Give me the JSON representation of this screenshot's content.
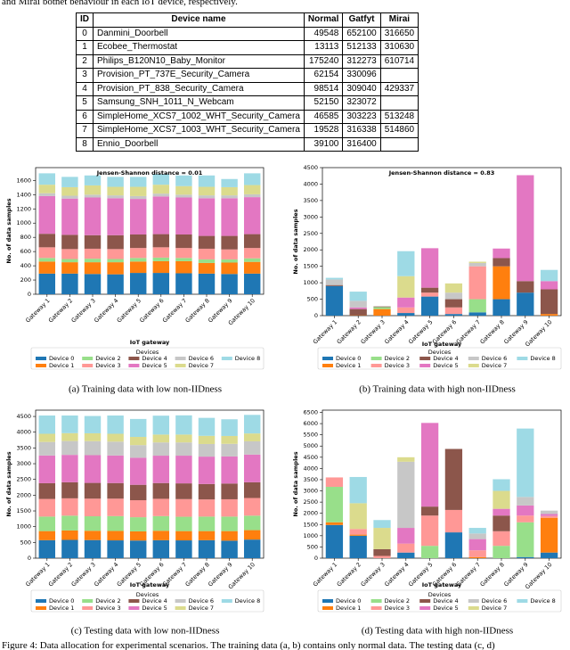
{
  "top_text": "and Mirai botnet behaviour in each IoT device, respectively.",
  "table": {
    "header": [
      "ID",
      "Device name",
      "Normal",
      "Gatfyt",
      "Mirai"
    ],
    "rows": [
      [
        0,
        "Danmini_Doorbell",
        49548,
        652100,
        316650
      ],
      [
        1,
        "Ecobee_Thermostat",
        13113,
        512133,
        310630
      ],
      [
        2,
        "Philips_B120N10_Baby_Monitor",
        175240,
        312273,
        610714
      ],
      [
        3,
        "Provision_PT_737E_Security_Camera",
        62154,
        330096,
        null
      ],
      [
        4,
        "Provision_PT_838_Security_Camera",
        98514,
        309040,
        429337
      ],
      [
        5,
        "Samsung_SNH_1011_N_Webcam",
        52150,
        323072,
        null
      ],
      [
        6,
        "SimpleHome_XCS7_1002_WHT_Security_Camera",
        46585,
        303223,
        513248
      ],
      [
        7,
        "SimpleHome_XCS7_1003_WHT_Security_Camera",
        19528,
        316338,
        514860
      ],
      [
        8,
        "Ennio_Doorbell",
        39100,
        316400,
        null
      ]
    ]
  },
  "chart_data": [
    {
      "type": "bar",
      "stacked": true,
      "annotation": "Jensen-Shannon distance = 0.01",
      "xlabel": "IoT gateway",
      "ylabel": "No. of data samples",
      "legend_title": "Devices",
      "caption": "(a) Training data with low non-IIDness",
      "categories": [
        "Gateway 1",
        "Gateway 2",
        "Gateway 3",
        "Gateway 4",
        "Gateway 5",
        "Gateway 6",
        "Gateway 7",
        "Gateway 8",
        "Gateway 9",
        "Gateway 10"
      ],
      "ylim": [
        0,
        1780
      ],
      "yticks": [
        0,
        200,
        400,
        600,
        800,
        1000,
        1200,
        1400,
        1600
      ],
      "series": [
        {
          "name": "Device 0",
          "color": "#1f77b4",
          "values": [
            290,
            290,
            285,
            280,
            300,
            300,
            295,
            290,
            285,
            290
          ]
        },
        {
          "name": "Device 1",
          "color": "#ff7f0e",
          "values": [
            170,
            160,
            165,
            170,
            160,
            165,
            170,
            150,
            160,
            165
          ]
        },
        {
          "name": "Device 2",
          "color": "#98df8a",
          "values": [
            50,
            45,
            50,
            45,
            50,
            50,
            45,
            50,
            45,
            50
          ]
        },
        {
          "name": "Device 3",
          "color": "#ff9896",
          "values": [
            150,
            140,
            140,
            140,
            140,
            145,
            140,
            150,
            140,
            145
          ]
        },
        {
          "name": "Device 4",
          "color": "#8c564b",
          "values": [
            190,
            200,
            190,
            195,
            190,
            185,
            190,
            180,
            190,
            195
          ]
        },
        {
          "name": "Device 5",
          "color": "#e377c2",
          "values": [
            530,
            510,
            530,
            520,
            500,
            530,
            520,
            530,
            530,
            520
          ]
        },
        {
          "name": "Device 6",
          "color": "#c7c7c7",
          "values": [
            40,
            40,
            40,
            40,
            40,
            40,
            40,
            40,
            40,
            40
          ]
        },
        {
          "name": "Device 7",
          "color": "#dbdb8d",
          "values": [
            120,
            120,
            130,
            120,
            130,
            125,
            120,
            120,
            115,
            130
          ]
        },
        {
          "name": "Device 8",
          "color": "#9edae5",
          "values": [
            160,
            145,
            140,
            140,
            140,
            150,
            150,
            160,
            115,
            165
          ]
        }
      ]
    },
    {
      "type": "bar",
      "stacked": true,
      "annotation": "Jensen-Shannon distance = 0.83",
      "xlabel": "IoT gateway",
      "ylabel": "No. of data samples",
      "legend_title": "Devices",
      "caption": "(b) Training data with high non-IIDness",
      "categories": [
        "Gateway 1",
        "Gateway 2",
        "Gateway 3",
        "Gateway 4",
        "Gateway 5",
        "Gateway 6",
        "Gateway 7",
        "Gateway 8",
        "Gateway 9",
        "Gateway 10"
      ],
      "ylim": [
        0,
        4500
      ],
      "yticks": [
        0,
        500,
        1000,
        1500,
        2000,
        2500,
        3000,
        3500,
        4000,
        4500
      ],
      "series": [
        {
          "name": "Device 0",
          "color": "#1f77b4",
          "values": [
            900,
            0,
            0,
            80,
            580,
            50,
            100,
            500,
            700,
            0
          ]
        },
        {
          "name": "Device 1",
          "color": "#ff7f0e",
          "values": [
            0,
            10,
            200,
            0,
            0,
            0,
            0,
            1000,
            0,
            50
          ]
        },
        {
          "name": "Device 2",
          "color": "#98df8a",
          "values": [
            0,
            0,
            60,
            0,
            0,
            0,
            400,
            0,
            0,
            0
          ]
        },
        {
          "name": "Device 3",
          "color": "#ff9896",
          "values": [
            0,
            0,
            0,
            170,
            120,
            200,
            1000,
            0,
            0,
            0
          ]
        },
        {
          "name": "Device 4",
          "color": "#8c564b",
          "values": [
            30,
            190,
            20,
            0,
            150,
            250,
            0,
            250,
            350,
            750
          ]
        },
        {
          "name": "Device 5",
          "color": "#e377c2",
          "values": [
            0,
            50,
            0,
            300,
            1200,
            0,
            0,
            290,
            3220,
            250
          ]
        },
        {
          "name": "Device 6",
          "color": "#c7c7c7",
          "values": [
            170,
            200,
            0,
            0,
            0,
            200,
            100,
            0,
            0,
            0
          ]
        },
        {
          "name": "Device 7",
          "color": "#dbdb8d",
          "values": [
            0,
            0,
            0,
            650,
            0,
            280,
            40,
            0,
            0,
            0
          ]
        },
        {
          "name": "Device 8",
          "color": "#9edae5",
          "values": [
            50,
            280,
            0,
            760,
            0,
            0,
            0,
            0,
            0,
            340
          ]
        }
      ]
    },
    {
      "type": "bar",
      "stacked": true,
      "xlabel": "IoT gateway",
      "ylabel": "No. of data samples",
      "legend_title": "Devices",
      "caption": "(c) Testing data with low non-IIDness",
      "categories": [
        "Gateway 1",
        "Gateway 2",
        "Gateway 3",
        "Gateway 4",
        "Gateway 5",
        "Gateway 6",
        "Gateway 7",
        "Gateway 8",
        "Gateway 9",
        "Gateway 10"
      ],
      "ylim": [
        0,
        4700
      ],
      "yticks": [
        0,
        500,
        1000,
        1500,
        2000,
        2500,
        3000,
        3500,
        4000,
        4500
      ],
      "series": [
        {
          "name": "Device 0",
          "color": "#1f77b4",
          "values": [
            570,
            580,
            575,
            565,
            560,
            570,
            565,
            570,
            555,
            590
          ]
        },
        {
          "name": "Device 1",
          "color": "#ff7f0e",
          "values": [
            290,
            300,
            295,
            300,
            290,
            300,
            295,
            290,
            305,
            300
          ]
        },
        {
          "name": "Device 2",
          "color": "#98df8a",
          "values": [
            460,
            470,
            460,
            470,
            450,
            465,
            455,
            460,
            460,
            460
          ]
        },
        {
          "name": "Device 3",
          "color": "#ff9896",
          "values": [
            560,
            550,
            560,
            555,
            540,
            550,
            560,
            545,
            550,
            560
          ]
        },
        {
          "name": "Device 4",
          "color": "#8c564b",
          "values": [
            500,
            510,
            500,
            495,
            490,
            500,
            500,
            490,
            500,
            500
          ]
        },
        {
          "name": "Device 5",
          "color": "#e377c2",
          "values": [
            880,
            870,
            880,
            875,
            860,
            870,
            880,
            870,
            860,
            880
          ]
        },
        {
          "name": "Device 6",
          "color": "#c7c7c7",
          "values": [
            430,
            440,
            445,
            440,
            400,
            420,
            420,
            400,
            400,
            420
          ]
        },
        {
          "name": "Device 7",
          "color": "#dbdb8d",
          "values": [
            260,
            250,
            250,
            250,
            260,
            250,
            250,
            260,
            250,
            250
          ]
        },
        {
          "name": "Device 8",
          "color": "#9edae5",
          "values": [
            580,
            560,
            550,
            580,
            570,
            600,
            610,
            570,
            530,
            590
          ]
        }
      ]
    },
    {
      "type": "bar",
      "stacked": true,
      "xlabel": "IoT gateway",
      "ylabel": "No. of data samples",
      "legend_title": "Devices",
      "caption": "(d) Testing data with high non-IIDness",
      "categories": [
        "Gateway 1",
        "Gateway 2",
        "Gateway 3",
        "Gateway 4",
        "Gateway 5",
        "Gateway 6",
        "Gateway 7",
        "Gateway 8",
        "Gateway 9",
        "Gateway 10"
      ],
      "ylim": [
        0,
        6600
      ],
      "yticks": [
        0,
        500,
        1000,
        1500,
        2000,
        2500,
        3000,
        3500,
        4000,
        4500,
        5000,
        5500,
        6000,
        6500
      ],
      "series": [
        {
          "name": "Device 0",
          "color": "#1f77b4",
          "values": [
            1480,
            1000,
            0,
            250,
            0,
            1150,
            0,
            0,
            50,
            250
          ]
        },
        {
          "name": "Device 1",
          "color": "#ff7f0e",
          "values": [
            120,
            50,
            0,
            0,
            0,
            0,
            50,
            0,
            0,
            1550
          ]
        },
        {
          "name": "Device 2",
          "color": "#98df8a",
          "values": [
            1580,
            0,
            0,
            0,
            550,
            0,
            0,
            550,
            1550,
            0
          ]
        },
        {
          "name": "Device 3",
          "color": "#ff9896",
          "values": [
            420,
            250,
            100,
            400,
            1350,
            1000,
            300,
            650,
            300,
            80
          ]
        },
        {
          "name": "Device 4",
          "color": "#8c564b",
          "values": [
            0,
            0,
            300,
            0,
            400,
            2720,
            0,
            700,
            0,
            0
          ]
        },
        {
          "name": "Device 5",
          "color": "#e377c2",
          "values": [
            0,
            0,
            0,
            700,
            3730,
            0,
            500,
            300,
            450,
            90
          ]
        },
        {
          "name": "Device 6",
          "color": "#c7c7c7",
          "values": [
            0,
            0,
            0,
            2950,
            0,
            0,
            250,
            0,
            380,
            150
          ]
        },
        {
          "name": "Device 7",
          "color": "#dbdb8d",
          "values": [
            0,
            1150,
            950,
            200,
            0,
            0,
            0,
            800,
            0,
            0
          ]
        },
        {
          "name": "Device 8",
          "color": "#9edae5",
          "values": [
            0,
            1170,
            350,
            0,
            0,
            0,
            250,
            520,
            3050,
            0
          ]
        }
      ]
    }
  ],
  "figure_caption": "Figure 4: Data allocation for experimental scenarios. The training data (a, b) contains only normal data. The testing data (c, d)"
}
